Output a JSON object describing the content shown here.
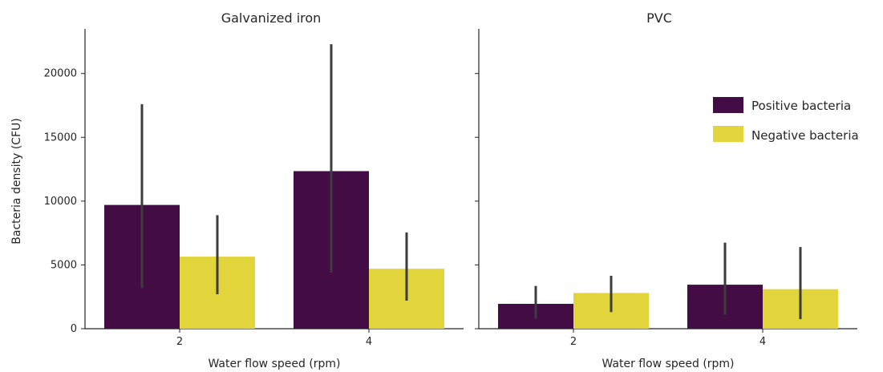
{
  "chart_data": [
    {
      "type": "bar",
      "title": "Galvanized iron",
      "xlabel": "Water flow speed (rpm)",
      "ylabel": "Bacteria density (CFU)",
      "categories": [
        "2",
        "4"
      ],
      "ylim": [
        0,
        23500
      ],
      "yticks": [
        "0",
        "5000",
        "10000",
        "15000",
        "20000"
      ],
      "series": [
        {
          "name": "Positive bacteria",
          "color": "#440c45",
          "values": [
            9700,
            12350
          ],
          "error_low": [
            3200,
            4400
          ],
          "error_high": [
            17600,
            22300
          ]
        },
        {
          "name": "Negative bacteria",
          "color": "#e1d53b",
          "values": [
            5650,
            4700
          ],
          "error_low": [
            2700,
            2200
          ],
          "error_high": [
            8900,
            7550
          ]
        }
      ]
    },
    {
      "type": "bar",
      "title": "PVC",
      "xlabel": "Water flow speed (rpm)",
      "ylabel": "",
      "categories": [
        "2",
        "4"
      ],
      "ylim": [
        0,
        23500
      ],
      "yticks": [
        "",
        "",
        "",
        "",
        ""
      ],
      "series": [
        {
          "name": "Positive bacteria",
          "color": "#440c45",
          "values": [
            1950,
            3450
          ],
          "error_low": [
            800,
            1100
          ],
          "error_high": [
            3350,
            6750
          ]
        },
        {
          "name": "Negative bacteria",
          "color": "#e1d53b",
          "values": [
            2800,
            3100
          ],
          "error_low": [
            1300,
            750
          ],
          "error_high": [
            4150,
            6400
          ]
        }
      ]
    }
  ],
  "legend": {
    "placement": "right",
    "entries": [
      {
        "label": "Positive bacteria",
        "color": "#440c45"
      },
      {
        "label": "Negative bacteria",
        "color": "#e1d53b"
      }
    ]
  },
  "error_bar_color": "#3d3d3d"
}
